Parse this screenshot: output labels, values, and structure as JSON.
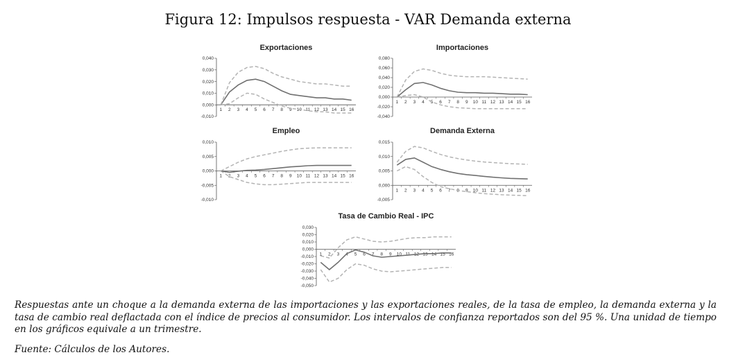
{
  "figure": {
    "title": "Figura 12: Impulsos respuesta - VAR Demanda externa",
    "caption": "Respuestas ante un choque a la demanda externa de las importaciones y las exportaciones reales, de la tasa de empleo, la demanda externa y la tasa de cambio real deflactada con el índice de precios al consumidor. Los intervalos de confianza reportados son del 95 %. Una unidad de tiempo en los gráficos equivale a un trimestre.",
    "source": "Fuente: Cálculos de los Autores."
  },
  "chart_data": [
    {
      "type": "line",
      "title": "Exportaciones",
      "x": [
        1,
        2,
        3,
        4,
        5,
        6,
        7,
        8,
        9,
        10,
        11,
        12,
        13,
        14,
        15,
        16
      ],
      "yticks": [
        "-0,010",
        "0,000",
        "0,010",
        "0,020",
        "0,030",
        "0,040"
      ],
      "ylim": [
        -0.01,
        0.04
      ],
      "series": [
        {
          "name": "lower",
          "style": "dashed",
          "values": [
            0.0,
            0.001,
            0.006,
            0.01,
            0.009,
            0.005,
            0.002,
            -0.001,
            -0.003,
            -0.004,
            -0.005,
            -0.006,
            -0.006,
            -0.007,
            -0.007,
            -0.007
          ]
        },
        {
          "name": "response",
          "style": "solid",
          "values": [
            0.0,
            0.011,
            0.017,
            0.021,
            0.022,
            0.02,
            0.016,
            0.012,
            0.009,
            0.008,
            0.007,
            0.006,
            0.006,
            0.005,
            0.005,
            0.004
          ]
        },
        {
          "name": "upper",
          "style": "dashed",
          "values": [
            0.0,
            0.019,
            0.028,
            0.032,
            0.033,
            0.031,
            0.027,
            0.024,
            0.022,
            0.02,
            0.019,
            0.018,
            0.018,
            0.017,
            0.016,
            0.016
          ]
        }
      ]
    },
    {
      "type": "line",
      "title": "Importaciones",
      "x": [
        1,
        2,
        3,
        4,
        5,
        6,
        7,
        8,
        9,
        10,
        11,
        12,
        13,
        14,
        15,
        16
      ],
      "yticks": [
        "-0,040",
        "-0,020",
        "0,000",
        "0,020",
        "0,040",
        "0,060",
        "0,080"
      ],
      "ylim": [
        -0.04,
        0.08
      ],
      "series": [
        {
          "name": "lower",
          "style": "dashed",
          "values": [
            0.0,
            0.003,
            0.005,
            0.0,
            -0.01,
            -0.016,
            -0.02,
            -0.022,
            -0.023,
            -0.024,
            -0.024,
            -0.024,
            -0.024,
            -0.024,
            -0.024,
            -0.024
          ]
        },
        {
          "name": "response",
          "style": "solid",
          "values": [
            0.0,
            0.015,
            0.028,
            0.03,
            0.025,
            0.018,
            0.013,
            0.01,
            0.009,
            0.009,
            0.008,
            0.008,
            0.007,
            0.006,
            0.006,
            0.005
          ]
        },
        {
          "name": "upper",
          "style": "dashed",
          "values": [
            0.0,
            0.035,
            0.053,
            0.058,
            0.055,
            0.049,
            0.045,
            0.043,
            0.042,
            0.042,
            0.042,
            0.041,
            0.04,
            0.039,
            0.038,
            0.037
          ]
        }
      ]
    },
    {
      "type": "line",
      "title": "Empleo",
      "x": [
        1,
        2,
        3,
        4,
        5,
        6,
        7,
        8,
        9,
        10,
        11,
        12,
        13,
        14,
        15,
        16
      ],
      "yticks": [
        "-0,010",
        "-0,005",
        "0,000",
        "0,005",
        "0,010"
      ],
      "ylim": [
        -0.01,
        0.01
      ],
      "series": [
        {
          "name": "lower",
          "style": "dashed",
          "values": [
            0.0,
            -0.002,
            -0.003,
            -0.004,
            -0.0045,
            -0.0048,
            -0.0048,
            -0.0046,
            -0.0044,
            -0.0042,
            -0.004,
            -0.004,
            -0.004,
            -0.004,
            -0.004,
            -0.004
          ]
        },
        {
          "name": "response",
          "style": "solid",
          "values": [
            0.0,
            -0.0005,
            -0.0001,
            0.0002,
            0.0003,
            0.0005,
            0.0008,
            0.0011,
            0.0014,
            0.0016,
            0.0018,
            0.0019,
            0.0019,
            0.0019,
            0.0019,
            0.0019
          ]
        },
        {
          "name": "upper",
          "style": "dashed",
          "values": [
            0.0,
            0.0015,
            0.003,
            0.0042,
            0.005,
            0.0056,
            0.0062,
            0.0068,
            0.0073,
            0.0077,
            0.0079,
            0.008,
            0.008,
            0.008,
            0.008,
            0.008
          ]
        }
      ]
    },
    {
      "type": "line",
      "title": "Demanda Externa",
      "x": [
        1,
        2,
        3,
        4,
        5,
        6,
        7,
        8,
        9,
        10,
        11,
        12,
        13,
        14,
        15,
        16
      ],
      "yticks": [
        "-0,005",
        "0,000",
        "0,005",
        "0,010",
        "0,015"
      ],
      "ylim": [
        -0.005,
        0.015
      ],
      "series": [
        {
          "name": "lower",
          "style": "dashed",
          "values": [
            0.005,
            0.0065,
            0.0055,
            0.003,
            0.001,
            -0.0005,
            -0.0012,
            -0.0018,
            -0.0022,
            -0.0026,
            -0.0029,
            -0.0031,
            -0.0033,
            -0.0034,
            -0.0035,
            -0.0036
          ]
        },
        {
          "name": "response",
          "style": "solid",
          "values": [
            0.007,
            0.009,
            0.0095,
            0.008,
            0.0065,
            0.0055,
            0.0047,
            0.0041,
            0.0037,
            0.0034,
            0.0031,
            0.0028,
            0.0026,
            0.0024,
            0.0023,
            0.0022
          ]
        },
        {
          "name": "upper",
          "style": "dashed",
          "values": [
            0.008,
            0.0118,
            0.0135,
            0.013,
            0.0118,
            0.0107,
            0.0099,
            0.0093,
            0.0088,
            0.0084,
            0.0081,
            0.0079,
            0.0077,
            0.0075,
            0.0074,
            0.0073
          ]
        }
      ]
    },
    {
      "type": "line",
      "title": "Tasa de Cambio Real - IPC",
      "x": [
        1,
        2,
        3,
        4,
        5,
        6,
        7,
        8,
        9,
        10,
        11,
        12,
        13,
        14,
        15,
        16
      ],
      "yticks": [
        "-0,050",
        "-0,040",
        "-0,030",
        "-0,020",
        "-0,010",
        "0,000",
        "0,010",
        "0,020",
        "0,030"
      ],
      "ylim": [
        -0.05,
        0.03
      ],
      "series": [
        {
          "name": "lower",
          "style": "dashed",
          "values": [
            -0.028,
            -0.045,
            -0.04,
            -0.028,
            -0.02,
            -0.022,
            -0.027,
            -0.03,
            -0.031,
            -0.03,
            -0.029,
            -0.028,
            -0.027,
            -0.026,
            -0.025,
            -0.025
          ]
        },
        {
          "name": "response",
          "style": "solid",
          "values": [
            -0.018,
            -0.028,
            -0.018,
            -0.006,
            -0.001,
            -0.004,
            -0.009,
            -0.011,
            -0.01,
            -0.009,
            -0.008,
            -0.007,
            -0.006,
            -0.006,
            -0.005,
            -0.005
          ]
        },
        {
          "name": "upper",
          "style": "dashed",
          "values": [
            -0.009,
            -0.012,
            0.002,
            0.013,
            0.017,
            0.014,
            0.011,
            0.01,
            0.011,
            0.013,
            0.015,
            0.016,
            0.016,
            0.017,
            0.017,
            0.017
          ]
        }
      ]
    }
  ]
}
